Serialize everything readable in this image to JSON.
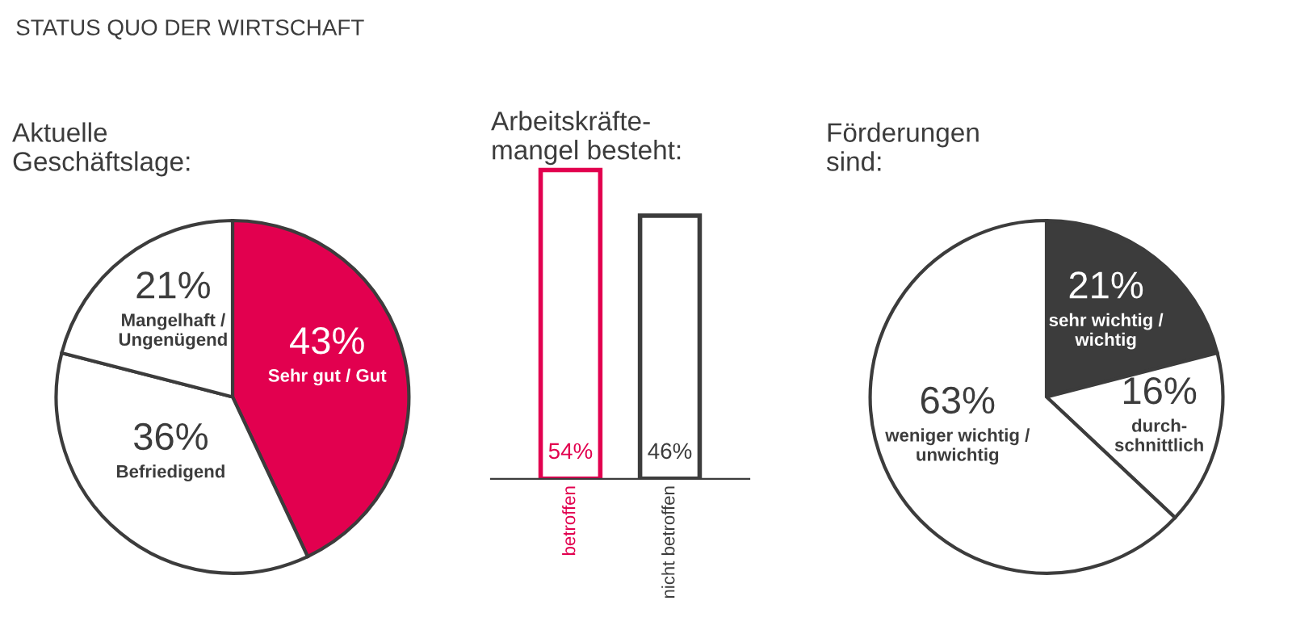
{
  "chart_data": [
    {
      "type": "pie",
      "subtitle": "STATUS QUO DER WIRTSCHAFT",
      "title": "Aktuelle\nGeschäftslage:",
      "categories": [
        "Sehr gut / Gut",
        "Befriedigend",
        "Mangelhaft /\nUngenügend"
      ],
      "values": [
        43,
        36,
        21
      ],
      "value_labels": [
        "43%",
        "36%",
        "21%"
      ],
      "colors": [
        "#e2004f",
        "#ffffff",
        "#ffffff"
      ]
    },
    {
      "type": "bar",
      "title": "Arbeitskräfte-\nmangel besteht:",
      "categories": [
        "betroffen",
        "nicht betroffen"
      ],
      "values": [
        54,
        46
      ],
      "value_labels": [
        "54%",
        "46%"
      ],
      "colors": [
        "#e2004f",
        "#3c3c3c"
      ]
    },
    {
      "type": "pie",
      "title": "Förderungen\nsind:",
      "categories": [
        "sehr wichtig /\nwichtig",
        "durch-\nschnittlich",
        "weniger wichtig /\nunwichtig"
      ],
      "values": [
        21,
        16,
        63
      ],
      "value_labels": [
        "21%",
        "16%",
        "63%"
      ],
      "colors": [
        "#3c3c3c",
        "#ffffff",
        "#ffffff"
      ]
    }
  ]
}
